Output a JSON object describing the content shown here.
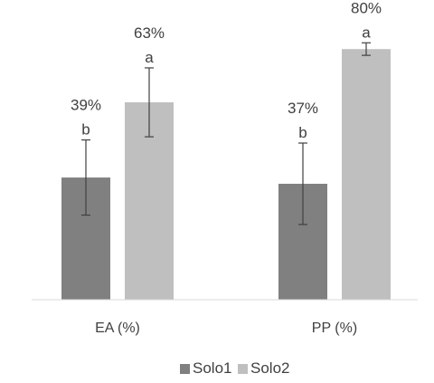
{
  "chart_data": {
    "type": "bar",
    "title": "",
    "xlabel": "",
    "ylabel": "",
    "ylim": [
      0,
      100
    ],
    "grid": false,
    "legend_position": "bottom",
    "categories": [
      "EA (%)",
      "PP (%)"
    ],
    "series": [
      {
        "name": "Solo1",
        "color": "#808080",
        "values": [
          39,
          37
        ],
        "value_labels": [
          "39%",
          "37%"
        ],
        "letters": [
          "b",
          "b"
        ],
        "error": [
          12,
          13
        ]
      },
      {
        "name": "Solo2",
        "color": "#bfbfbf",
        "values": [
          63,
          80
        ],
        "value_labels": [
          "63%",
          "80%"
        ],
        "letters": [
          "a",
          "a"
        ],
        "error": [
          11,
          2
        ]
      }
    ]
  }
}
